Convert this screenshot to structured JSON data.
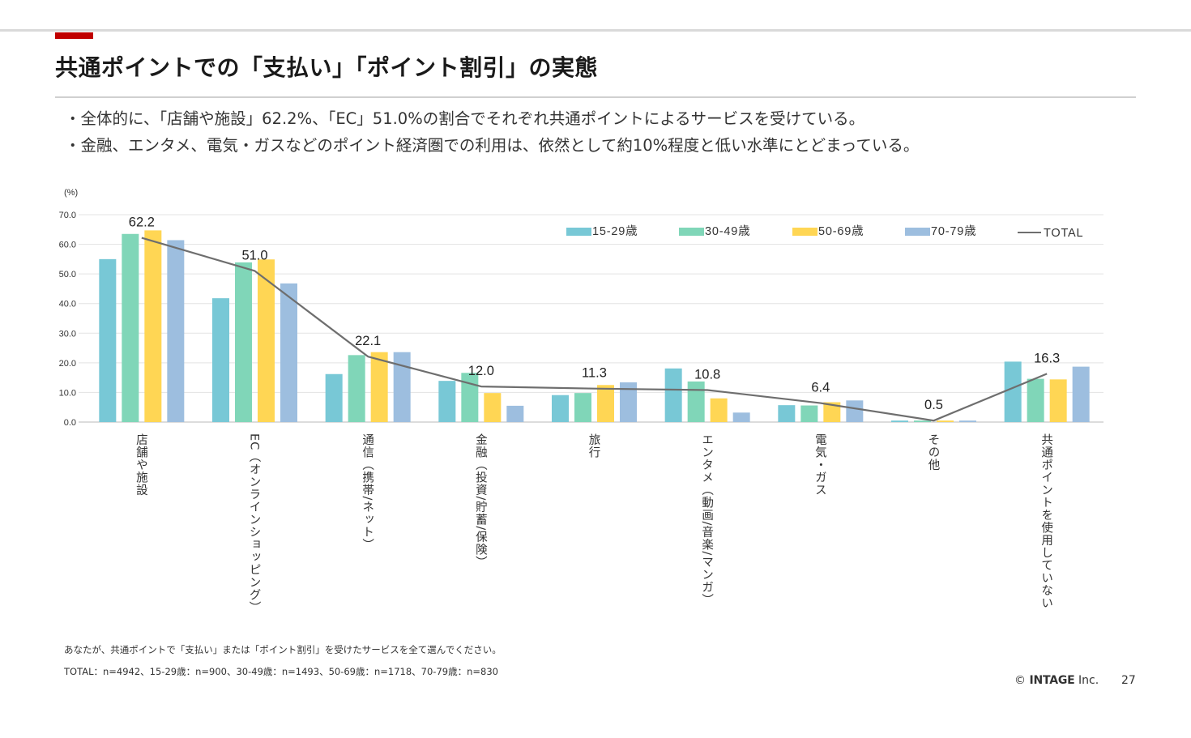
{
  "slide": {
    "title": "共通ポイントでの「支払い」「ポイント割引」の実態",
    "bullets": [
      "・全体的に、「店舗や施設」62.2%、「EC」51.0%の割合でそれぞれ共通ポイントによるサービスを受けている。",
      "・金融、エンタメ、電気・ガスなどのポイント経済圏での利用は、依然として約10%程度と低い水準にとどまっている。"
    ],
    "notes": [
      "あなたが、共通ポイントで「支払い」または「ポイント割引」を受けたサービスを全て選んでください。",
      "TOTAL：n=4942、15-29歳：n=900、30-49歳：n=1493、50-69歳：n=1718、70-79歳：n=830"
    ],
    "footer": {
      "copyright_symbol": "©",
      "company": "INTAGE",
      "suffix": "Inc.",
      "page_number": "27"
    },
    "accent_color": "#c00000"
  },
  "chart_data": {
    "type": "bar",
    "title": "",
    "ylabel": "(%)",
    "xlabel": "",
    "ylim": [
      0,
      70
    ],
    "yticks": [
      "0.0",
      "10.0",
      "20.0",
      "30.0",
      "40.0",
      "50.0",
      "60.0",
      "70.0"
    ],
    "grid": true,
    "legend_position": "top-right",
    "categories": [
      "店舗や施設",
      "EC（オンラインショッピング）",
      "通信（携帯/ネット）",
      "金融（投資/貯蓄/保険）",
      "旅行",
      "エンタメ（動画/音楽/マンガ）",
      "電気・ガス",
      "その他",
      "共通ポイントを使用していない"
    ],
    "series": [
      {
        "name": "15-29歳",
        "type": "bar",
        "color": "#78c8d6",
        "values": [
          55.0,
          41.8,
          16.2,
          13.9,
          9.1,
          18.1,
          5.7,
          0.5,
          20.4
        ]
      },
      {
        "name": "30-49歳",
        "type": "bar",
        "color": "#80d6b8",
        "values": [
          63.5,
          53.9,
          22.6,
          16.6,
          9.8,
          13.7,
          5.6,
          0.5,
          14.6
        ]
      },
      {
        "name": "50-69歳",
        "type": "bar",
        "color": "#ffd654",
        "values": [
          64.7,
          54.9,
          23.6,
          9.8,
          12.5,
          8.0,
          6.7,
          0.5,
          14.4
        ]
      },
      {
        "name": "70-79歳",
        "type": "bar",
        "color": "#9dbedf",
        "values": [
          61.4,
          46.8,
          23.6,
          5.5,
          13.4,
          3.2,
          7.3,
          0.5,
          18.7
        ]
      },
      {
        "name": "TOTAL",
        "type": "line",
        "color": "#6e6e6e",
        "values": [
          62.2,
          51.0,
          22.1,
          12.0,
          11.3,
          10.8,
          6.4,
          0.5,
          16.3
        ],
        "labels": [
          "62.2",
          "51.0",
          "22.1",
          "12.0",
          "11.3",
          "10.8",
          "6.4",
          "0.5",
          "16.3"
        ]
      }
    ]
  }
}
